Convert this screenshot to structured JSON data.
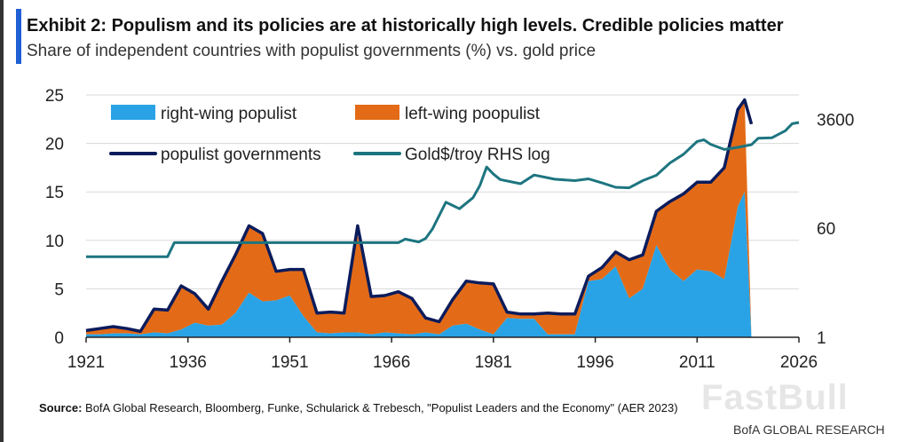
{
  "header": {
    "title": "Exhibit 2: Populism and its policies are at historically high levels.  Credible policies matter",
    "subtitle": "Share of independent countries with populist governments (%) vs. gold price"
  },
  "footer": {
    "source_label": "Source:",
    "source_text": "BofA Global Research, Bloomberg, Funke, Schularick & Trebesch, \"Populist Leaders and the Economy\" (AER 2023)",
    "brand": "BofA GLOBAL RESEARCH",
    "watermark": "FastBull"
  },
  "chart_data": {
    "type": "area",
    "x_ticks": [
      "1921",
      "1936",
      "1951",
      "1966",
      "1981",
      "1996",
      "2011",
      "2026"
    ],
    "xlim": [
      1921,
      2026
    ],
    "y_left": {
      "lim": [
        0,
        25
      ],
      "ticks": [
        "0",
        "5",
        "10",
        "15",
        "20",
        "25"
      ]
    },
    "y_right": {
      "scale": "log",
      "lim": [
        1,
        9000
      ],
      "ticks": [
        {
          "label": "1",
          "value": 1
        },
        {
          "label": "60",
          "value": 60
        },
        {
          "label": "3600",
          "value": 3600
        }
      ]
    },
    "legend": {
      "placement": "top-left",
      "entries": [
        {
          "label": "right-wing populist",
          "marker": "patch",
          "color": "#29a3e6"
        },
        {
          "label": "left-wing poopulist",
          "marker": "patch",
          "color": "#e36b17"
        },
        {
          "label": "populist governments",
          "marker": "line",
          "color": "#0b1c5c"
        },
        {
          "label": "Gold$/troy RHS log",
          "marker": "line",
          "color": "#1d7580"
        }
      ]
    },
    "grid": "horizontal",
    "x": [
      1921,
      1923,
      1925,
      1927,
      1929,
      1931,
      1933,
      1935,
      1937,
      1939,
      1941,
      1943,
      1945,
      1947,
      1949,
      1951,
      1953,
      1955,
      1957,
      1959,
      1961,
      1963,
      1965,
      1967,
      1969,
      1971,
      1973,
      1975,
      1977,
      1979,
      1981,
      1983,
      1985,
      1987,
      1989,
      1991,
      1993,
      1995,
      1997,
      1999,
      2001,
      2003,
      2005,
      2007,
      2009,
      2011,
      2013,
      2015,
      2017,
      2018,
      2019,
      2020
    ],
    "series": [
      {
        "name": "right-wing populist",
        "color": "#29a3e6",
        "values": [
          0.3,
          0.3,
          0.4,
          0.4,
          0.3,
          0.5,
          0.4,
          0.8,
          1.5,
          1.2,
          1.3,
          2.5,
          4.6,
          3.7,
          3.8,
          4.3,
          2.2,
          0.5,
          0.4,
          0.5,
          0.5,
          0.3,
          0.5,
          0.4,
          0.3,
          0.5,
          0.3,
          1.2,
          1.4,
          0.8,
          0.3,
          2.0,
          1.9,
          1.9,
          0.3,
          0.3,
          0.3,
          5.8,
          6.0,
          7.3,
          4.0,
          5.0,
          9.5,
          7.0,
          5.8,
          7.0,
          6.8,
          6.0,
          13.5,
          15.0,
          0.0,
          0.0
        ]
      },
      {
        "name": "left-wing poopulist",
        "color": "#e36b17",
        "values": [
          0.4,
          0.6,
          0.7,
          0.5,
          0.3,
          2.4,
          2.4,
          4.5,
          3.0,
          1.7,
          4.5,
          6.0,
          6.9,
          7.0,
          3.0,
          2.7,
          4.8,
          2.0,
          2.2,
          2.0,
          10.0,
          3.9,
          3.8,
          4.3,
          3.7,
          1.5,
          1.3,
          2.7,
          4.4,
          4.8,
          5.2,
          0.6,
          0.5,
          0.5,
          2.2,
          2.1,
          2.1,
          0.5,
          1.2,
          1.5,
          4.0,
          3.5,
          3.5,
          7.0,
          9.0,
          9.0,
          9.2,
          11.5,
          10.0,
          9.5,
          0.0,
          0.0
        ]
      },
      {
        "name": "populist governments",
        "color": "#0b1c5c",
        "values": [
          0.7,
          0.9,
          1.1,
          0.9,
          0.6,
          2.9,
          2.8,
          5.3,
          4.5,
          2.9,
          5.8,
          8.5,
          11.5,
          10.7,
          6.8,
          7.0,
          7.0,
          2.5,
          2.6,
          2.5,
          11.5,
          4.2,
          4.3,
          4.7,
          4.0,
          2.0,
          1.6,
          3.9,
          5.8,
          5.6,
          5.5,
          2.6,
          2.4,
          2.4,
          2.5,
          2.4,
          2.4,
          6.3,
          7.2,
          8.8,
          8.0,
          8.5,
          13.0,
          14.0,
          14.8,
          16.0,
          16.0,
          17.5,
          23.5,
          24.5,
          22.0,
          22.0
        ]
      }
    ],
    "series_right": {
      "name": "Gold$/troy RHS log",
      "color": "#1d7580",
      "x": [
        1921,
        1925,
        1933,
        1934,
        1940,
        1950,
        1960,
        1967,
        1968,
        1970,
        1971,
        1972,
        1974,
        1976,
        1978,
        1979,
        1980,
        1981,
        1982,
        1985,
        1987,
        1990,
        1993,
        1995,
        1997,
        1999,
        2001,
        2003,
        2005,
        2007,
        2009,
        2011,
        2012,
        2013,
        2015,
        2017,
        2019,
        2020,
        2022,
        2024,
        2025,
        2026
      ],
      "values": [
        20.67,
        20.67,
        20.67,
        35,
        35,
        35,
        35,
        35,
        40,
        36,
        41,
        58,
        160,
        125,
        190,
        300,
        600,
        460,
        375,
        320,
        445,
        380,
        360,
        385,
        330,
        280,
        275,
        360,
        440,
        700,
        970,
        1570,
        1670,
        1410,
        1160,
        1257,
        1392,
        1770,
        1800,
        2350,
        3050,
        3200
      ]
    }
  }
}
